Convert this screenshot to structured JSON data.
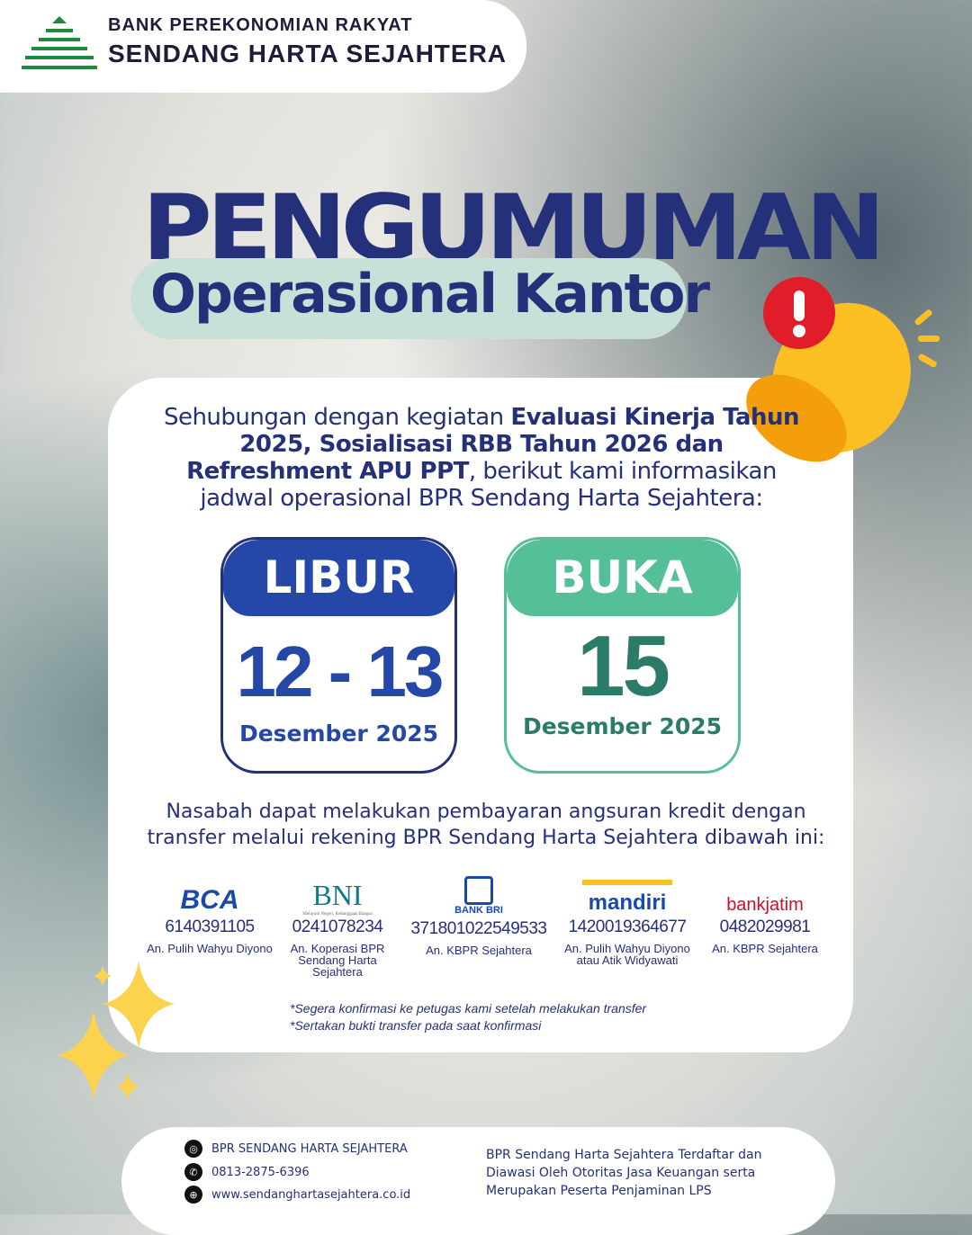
{
  "header": {
    "line1": "BANK PEREKONOMIAN RAKYAT",
    "line2": "SENDANG HARTA SEJAHTERA"
  },
  "title": "PENGUMUMAN",
  "subtitle": "Operasional Kantor",
  "intro": {
    "p1": "Sehubungan dengan kegiatan ",
    "b1": "Evaluasi Kinerja Tahun 2025, Sosialisasi RBB Tahun 2026 dan Refreshment APU PPT",
    "p2": ", berikut kami informasikan jadwal operasional BPR Sendang Harta Sejahtera:"
  },
  "closed": {
    "label": "LIBUR",
    "dates": "12 - 13",
    "month": "Desember 2025",
    "color": "#2548a8"
  },
  "open": {
    "label": "BUKA",
    "dates": "15",
    "month": "Desember 2025",
    "color": "#55bf98"
  },
  "note": "Nasabah dapat melakukan pembayaran angsuran kredit dengan transfer melalui rekening BPR Sendang Harta Sejahtera dibawah ini:",
  "banks": [
    {
      "logo": "BCA",
      "account": "6140391105",
      "name": "An. Pulih Wahyu Diyono"
    },
    {
      "logo": "BNI",
      "tagline": "Melayani Negeri, Kebanggaan Bangsa",
      "account": "0241078234",
      "name": "An. Koperasi BPR Sendang Harta Sejahtera"
    },
    {
      "logo": "BANK BRI",
      "account": "371801022549533",
      "name": "An. KBPR Sejahtera"
    },
    {
      "logo": "mandiri",
      "account": "1420019364677",
      "name": "An. Pulih Wahyu Diyono atau Atik Widyawati"
    },
    {
      "logo": "bankjatim",
      "account": "0482029981",
      "name": "An. KBPR Sejahtera"
    }
  ],
  "fine1": "*Segera konfirmasi ke petugas kami setelah melakukan transfer",
  "fine2": "*Sertakan bukti transfer pada saat konfirmasi",
  "footer": {
    "instagram": "BPR SENDANG HARTA SEJAHTERA",
    "phone": "0813-2875-6396",
    "web": "www.sendanghartasejahtera.co.id",
    "ojk": "BPR Sendang Harta Sejahtera Terdaftar dan Diawasi Oleh Otoritas Jasa Keuangan serta Merupakan Peserta Penjaminan LPS"
  }
}
